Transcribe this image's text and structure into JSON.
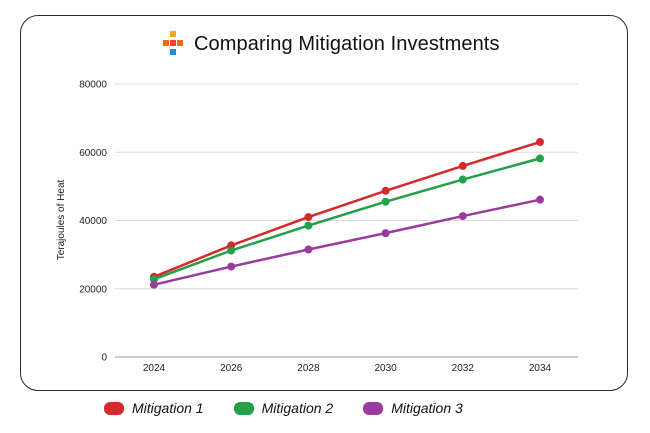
{
  "chart_data": {
    "type": "line",
    "title": "Comparing Mitigation Investments",
    "xlabel": "",
    "ylabel": "Terajoules of Heat",
    "x": [
      "2024",
      "2026",
      "2028",
      "2030",
      "2032",
      "2034"
    ],
    "yticks": [
      0,
      20000,
      40000,
      60000,
      80000
    ],
    "ylim": [
      0,
      80000
    ],
    "series": [
      {
        "name": "Mitigation 1",
        "color": "#d42a2e",
        "values": [
          23500,
          32700,
          41000,
          48700,
          56000,
          63000
        ]
      },
      {
        "name": "Mitigation 2",
        "color": "#22a04a",
        "values": [
          22800,
          31200,
          38500,
          45500,
          52000,
          58200
        ]
      },
      {
        "name": "Mitigation 3",
        "color": "#9b3a9e",
        "values": [
          21200,
          26500,
          31500,
          36300,
          41300,
          46100
        ]
      }
    ],
    "grid": true,
    "legend": "bottom"
  },
  "logo": {
    "name": "plus-logo-icon",
    "colors": {
      "top": "#f5a81c",
      "left": "#f06a24",
      "center": "#e8452a",
      "right": "#f06a24",
      "bottom": "#1e8fd1"
    }
  }
}
